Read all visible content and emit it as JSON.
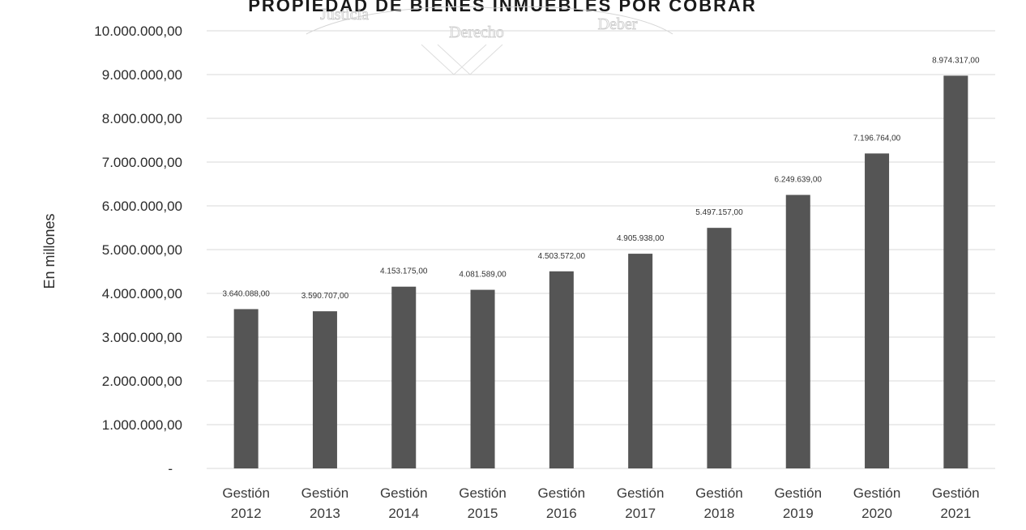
{
  "chart_data": {
    "type": "bar",
    "title": "PROPIEDAD DE BIENES INMUEBLES POR COBRAR",
    "ylabel": "En millones",
    "xlabel": "",
    "categories": [
      [
        "Gestión",
        "2012"
      ],
      [
        "Gestión",
        "2013"
      ],
      [
        "Gestión",
        "2014"
      ],
      [
        "Gestión",
        "2015"
      ],
      [
        "Gestión",
        "2016"
      ],
      [
        "Gestión",
        "2017"
      ],
      [
        "Gestión",
        "2018"
      ],
      [
        "Gestión",
        "2019"
      ],
      [
        "Gestión",
        "2020"
      ],
      [
        "Gestión",
        "2021"
      ]
    ],
    "values": [
      3640088,
      3590707,
      4153175,
      4081589,
      4503572,
      4905938,
      5497157,
      6249639,
      7196764,
      8974317
    ],
    "data_labels": [
      "3.640.088,00",
      "3.590.707,00",
      "4.153.175,00",
      "4.081.589,00",
      "4.503.572,00",
      "4.905.938,00",
      "5.497.157,00",
      "6.249.639,00",
      "7.196.764,00",
      "8.974.317,00"
    ],
    "yticks": [
      0,
      1000000,
      2000000,
      3000000,
      4000000,
      5000000,
      6000000,
      7000000,
      8000000,
      9000000,
      10000000
    ],
    "ytick_labels": [
      "-",
      "1.000.000,00",
      "2.000.000,00",
      "3.000.000,00",
      "4.000.000,00",
      "5.000.000,00",
      "6.000.000,00",
      "7.000.000,00",
      "8.000.000,00",
      "9.000.000,00",
      "10.000.000,00"
    ],
    "ylim": [
      0,
      10000000
    ],
    "grid": true,
    "legend": "none",
    "bar_color": "#555555",
    "grid_color": "#d9d9d9"
  },
  "watermark": {
    "words": [
      "Justicia",
      "Derecho",
      "Deber"
    ]
  }
}
